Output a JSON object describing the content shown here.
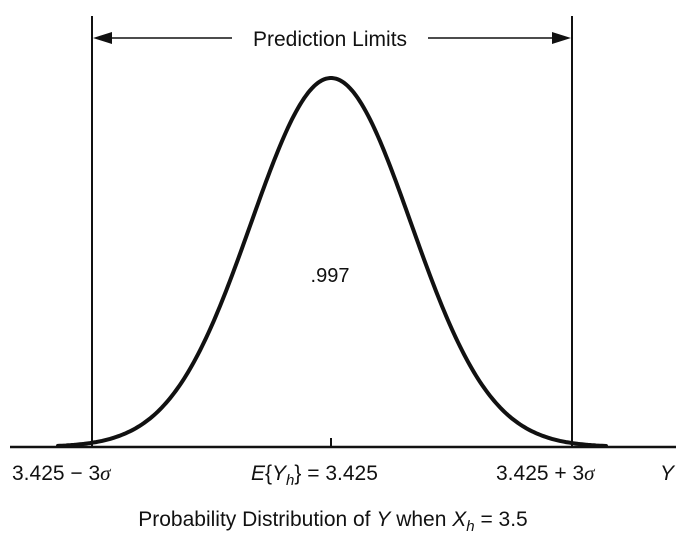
{
  "header_label": "Prediction Limits",
  "area_label": ".997",
  "x_axis": {
    "left_label_prefix": "3.425 − 3",
    "left_label_symbol": "σ",
    "center_label_e": "E",
    "center_label_open": "{",
    "center_label_var": "Y",
    "center_label_sub": "h",
    "center_label_tail": "} = 3.425",
    "right_label_prefix": "3.425 + 3",
    "right_label_symbol": "σ",
    "axis_var": "Y"
  },
  "caption": {
    "prefix": "Probability Distribution of ",
    "var_y": "Y",
    "mid": " when ",
    "var_x": "X",
    "sub": "h",
    "suffix": " = 3.5"
  },
  "colors": {
    "ink": "#111111",
    "background": "#ffffff"
  }
}
